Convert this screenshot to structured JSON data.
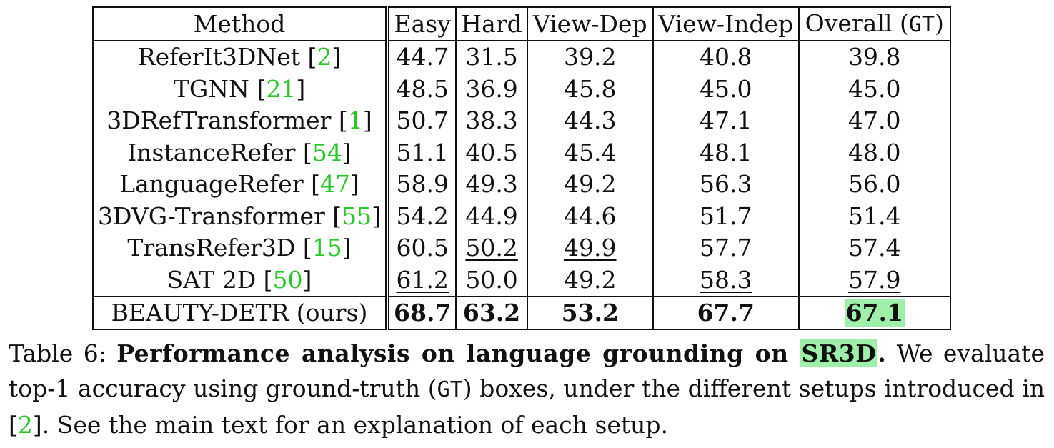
{
  "table": {
    "headers": {
      "method": "Method",
      "easy": "Easy",
      "hard": "Hard",
      "view_dep": "View-Dep",
      "view_indep": "View-Indep",
      "overall": "Overall",
      "overall_gt": "GT"
    },
    "rows": [
      {
        "name": "ReferIt3DNet",
        "cite": "2",
        "easy": "44.7",
        "hard": "31.5",
        "view_dep": "39.2",
        "view_indep": "40.8",
        "overall": "39.8"
      },
      {
        "name": "TGNN",
        "cite": "21",
        "easy": "48.5",
        "hard": "36.9",
        "view_dep": "45.8",
        "view_indep": "45.0",
        "overall": "45.0"
      },
      {
        "name": "3DRefTransformer",
        "cite": "1",
        "easy": "50.7",
        "hard": "38.3",
        "view_dep": "44.3",
        "view_indep": "47.1",
        "overall": "47.0"
      },
      {
        "name": "InstanceRefer",
        "cite": "54",
        "easy": "51.1",
        "hard": "40.5",
        "view_dep": "45.4",
        "view_indep": "48.1",
        "overall": "48.0"
      },
      {
        "name": "LanguageRefer",
        "cite": "47",
        "easy": "58.9",
        "hard": "49.3",
        "view_dep": "49.2",
        "view_indep": "56.3",
        "overall": "56.0"
      },
      {
        "name": "3DVG-Transformer",
        "cite": "55",
        "easy": "54.2",
        "hard": "44.9",
        "view_dep": "44.6",
        "view_indep": "51.7",
        "overall": "51.4"
      },
      {
        "name": "TransRefer3D",
        "cite": "15",
        "easy": "60.5",
        "hard": "50.2",
        "view_dep": "49.9",
        "view_indep": "57.7",
        "overall": "57.4"
      },
      {
        "name": "SAT 2D",
        "cite": "50",
        "easy": "61.2",
        "hard": "50.0",
        "view_dep": "49.2",
        "view_indep": "58.3",
        "overall": "57.9"
      }
    ],
    "ours": {
      "name": "BEAUTY-DETR (ours)",
      "easy": "68.7",
      "hard": "63.2",
      "view_dep": "53.2",
      "view_indep": "67.7",
      "overall": "67.1"
    },
    "underlined": [
      "r6.hard",
      "r6.view_dep",
      "r7.easy",
      "r7.view_indep",
      "r7.overall"
    ],
    "highlight_color": "#9ef0a8",
    "citation_color": "#22cc22"
  },
  "caption": {
    "label": "Table 6:",
    "title_pre": "Performance analysis on language grounding on",
    "title_hl": "SR3D",
    "title_end": ".",
    "text_1": "We evaluate top-1 accuracy using ground-truth (",
    "gt": "GT",
    "text_2": ") boxes, under the different setups introduced in [",
    "cite": "2",
    "text_3": "]. See the main text for an explanation of each setup."
  }
}
